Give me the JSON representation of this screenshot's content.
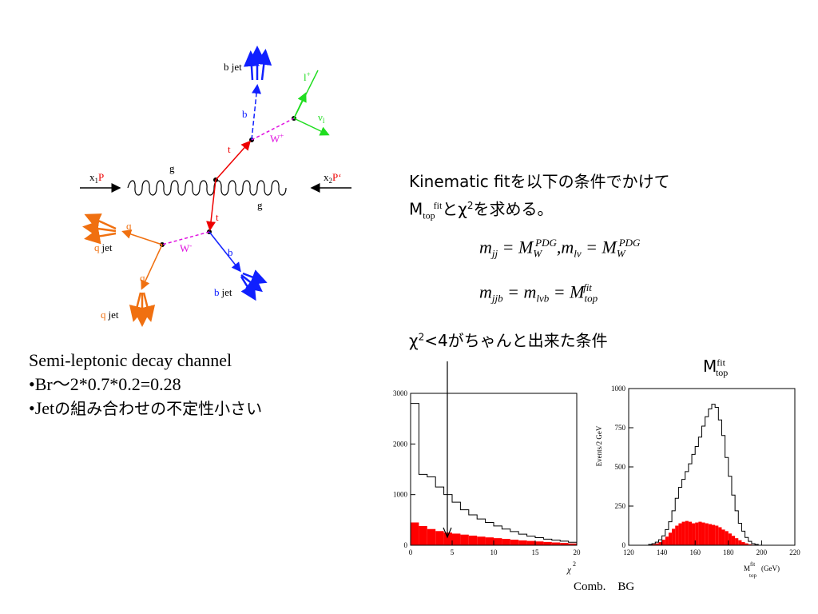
{
  "feynman": {
    "beam_left": "x",
    "beam_left_sub": "1",
    "beam_left_p": "P",
    "beam_right": "x",
    "beam_right_sub": "2",
    "beam_right_p": "P‘",
    "gluon_top": "g",
    "gluon_bottom": "g",
    "top": "t",
    "antitop": "t",
    "b": "b",
    "bbar": "b",
    "wplus": "W",
    "wplus_sup": "+",
    "wminus": "W",
    "wminus_sup": "-",
    "lepton": "l",
    "lepton_sup": "+",
    "neutrino": "ν",
    "neutrino_sub": "l",
    "q": "q",
    "qbar": "q",
    "bjet": "b jet",
    "bbarjet_b": "b",
    "bbarjet_jet": "jet",
    "qjet_q": "q",
    "qjet_jet": "jet",
    "qbarjet_q": "q",
    "qbarjet_jet": "jet"
  },
  "left_text": {
    "line1": "Semi-leptonic decay channel",
    "line2": "•Br～2*0.7*0.2=0.28",
    "line3_prefix": "•Jet",
    "line3_rest": "の組み合わせの不定性小さい"
  },
  "right_text": {
    "heading1": "Kinematic fitを以下の条件でかけて",
    "heading2_m": "M",
    "heading2_sub": "top",
    "heading2_sup": "fit",
    "heading2_rest": "とχ",
    "heading2_sq": "2",
    "heading2_tail": "を求める。",
    "eq1": "m_jj = M_W^PDG , m_lν = M_W^PDG",
    "eq2": "m_jjb = m_lνb = M_top^fit",
    "cut_chi": "χ",
    "cut_sq": "2",
    "cut_rest": "<4がちゃんと出来た条件",
    "mfit_label_m": "M",
    "mfit_label_sup": "fit",
    "mfit_label_sub": "top",
    "legend": "Comb.    BG"
  },
  "chart_data": [
    {
      "type": "bar",
      "title": "",
      "xlabel": "χ2",
      "ylabel": "",
      "xlim": [
        0,
        20
      ],
      "ylim": [
        0,
        3000
      ],
      "xticks": [
        "0",
        "5",
        "10",
        "15",
        "20"
      ],
      "yticks": [
        "0",
        "1000",
        "2000",
        "3000"
      ],
      "bins": [
        0,
        1,
        2,
        3,
        4,
        5,
        6,
        7,
        8,
        9,
        10,
        11,
        12,
        13,
        14,
        15,
        16,
        17,
        18,
        19
      ],
      "series": [
        {
          "values": [
            2800,
            1400,
            1350,
            1150,
            1000,
            850,
            700,
            600,
            520,
            450,
            380,
            320,
            270,
            220,
            180,
            150,
            120,
            100,
            80,
            60
          ]
        },
        {
          "values": [
            450,
            380,
            320,
            280,
            250,
            230,
            210,
            190,
            170,
            155,
            140,
            125,
            110,
            95,
            85,
            75,
            65,
            55,
            45,
            35
          ]
        }
      ]
    },
    {
      "type": "bar",
      "title": "",
      "xlabel": "Mtopfit (GeV)",
      "ylabel": "Events/2 GeV",
      "xlim": [
        120,
        220
      ],
      "ylim": [
        0,
        1000
      ],
      "xticks": [
        "120",
        "140",
        "160",
        "180",
        "200",
        "220"
      ],
      "yticks": [
        "0",
        "250",
        "500",
        "750",
        "1000"
      ],
      "bin_width": 2,
      "series": [
        {
          "values": [
            0,
            0,
            0,
            0,
            0,
            0,
            5,
            10,
            20,
            35,
            60,
            100,
            150,
            220,
            300,
            370,
            420,
            470,
            520,
            580,
            630,
            690,
            760,
            820,
            870,
            900,
            880,
            800,
            700,
            560,
            440,
            320,
            220,
            140,
            90,
            50,
            25,
            10,
            5,
            0,
            0,
            0,
            0,
            0,
            0,
            0,
            0,
            0,
            0,
            0
          ]
        },
        {
          "values": [
            0,
            0,
            0,
            0,
            0,
            0,
            3,
            6,
            12,
            20,
            35,
            55,
            80,
            105,
            125,
            140,
            150,
            155,
            150,
            140,
            145,
            150,
            145,
            140,
            135,
            130,
            125,
            115,
            100,
            90,
            75,
            60,
            45,
            32,
            20,
            12,
            6,
            3,
            1,
            0,
            0,
            0,
            0,
            0,
            0,
            0,
            0,
            0,
            0,
            0
          ]
        }
      ]
    }
  ]
}
